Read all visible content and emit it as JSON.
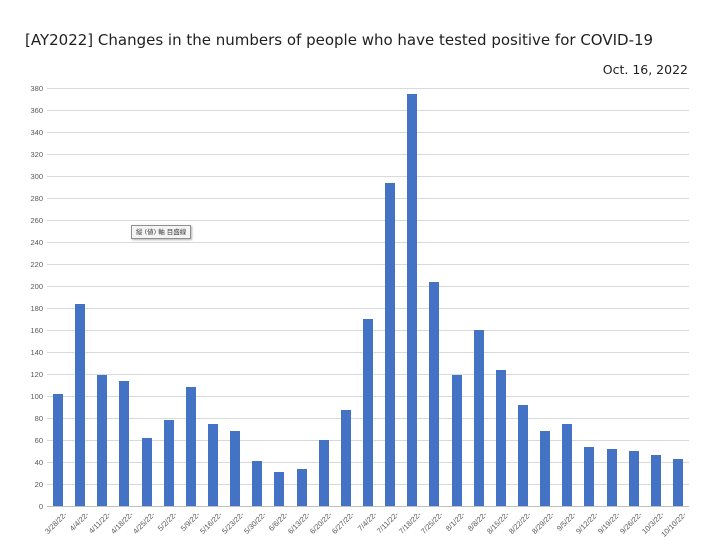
{
  "header": {
    "title": "[AY2022] Changes in the numbers of people who have tested positive for COVID-19",
    "date_label": "Oct. 16, 2022"
  },
  "tooltip": {
    "text": "縦 (値) 軸 目盛線"
  },
  "colors": {
    "bar": "#4472C4",
    "gridline": "#d9d9d9",
    "axis_line": "#bfbfbf",
    "tick_label": "#595959"
  },
  "chart_data": {
    "type": "bar",
    "title": "[AY2022] Changes in the numbers of people who have tested positive for COVID-19",
    "subtitle": "Oct. 16, 2022",
    "categories": [
      "3/28/22-",
      "4/4/22-",
      "4/11/22-",
      "4/18/22-",
      "4/25/22-",
      "5/2/22-",
      "5/9/22-",
      "5/16/22-",
      "5/23/22-",
      "5/30/22-",
      "6/6/22-",
      "6/13/22-",
      "6/20/22-",
      "6/27/22-",
      "7/4/22-",
      "7/11/22-",
      "7/18/22-",
      "7/25/22-",
      "8/1/22-",
      "8/8/22-",
      "8/15/22-",
      "8/22/22-",
      "8/29/22-",
      "9/5/22-",
      "9/12/22-",
      "9/19/22-",
      "9/26/22-",
      "10/3/22-",
      "10/10/22-"
    ],
    "values": [
      102,
      184,
      119,
      114,
      62,
      78,
      108,
      75,
      68,
      41,
      31,
      34,
      60,
      87,
      170,
      294,
      375,
      204,
      119,
      160,
      124,
      92,
      68,
      75,
      54,
      52,
      50,
      46,
      43
    ],
    "xlabel": "",
    "ylabel": "",
    "ylim": [
      0,
      380
    ],
    "ytick_step": 20,
    "grid": true,
    "legend_position": "none"
  }
}
